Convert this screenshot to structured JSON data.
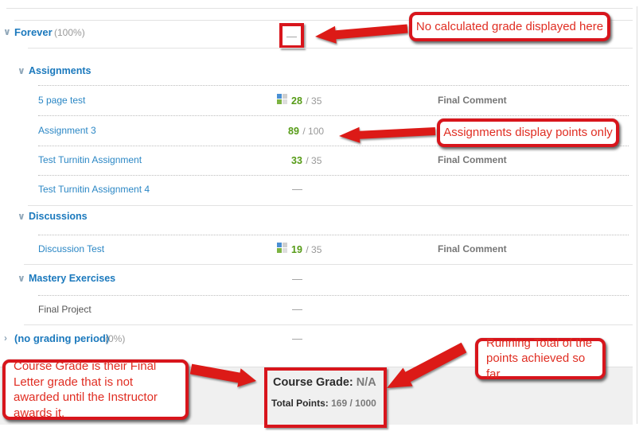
{
  "colors": {
    "accent_blue": "#1b79bd",
    "annotation_red": "#d8151c",
    "grade_green": "#569b17",
    "muted_gray": "#999999",
    "summary_bg": "#f0f0f0"
  },
  "period_row": {
    "chevron": "∨",
    "label": "Forever",
    "weight": "(100%)",
    "dash": "—"
  },
  "sections": {
    "assignments": {
      "chevron": "∨",
      "label": "Assignments"
    },
    "discussions": {
      "chevron": "∨",
      "label": "Discussions"
    },
    "mastery": {
      "chevron": "∨",
      "label": "Mastery Exercises",
      "dash": "—"
    }
  },
  "rows": [
    {
      "title": "5 page test",
      "score": "28",
      "max": "/ 35",
      "comment": "Final Comment"
    },
    {
      "title": "Assignment 3",
      "score": "89",
      "max": "/ 100"
    },
    {
      "title": "Test Turnitin Assignment",
      "score": "33",
      "max": "/ 35",
      "comment": "Final Comment"
    },
    {
      "title": "Test Turnitin Assignment 4",
      "dash": "—"
    },
    {
      "title": "Discussion Test",
      "score": "19",
      "max": "/ 35",
      "comment": "Final Comment"
    },
    {
      "title": "Final Project",
      "dash": "—"
    }
  ],
  "no_grading_period": {
    "chevron": "›",
    "label": "(no grading period)",
    "weight": "(0%)",
    "dash": "—"
  },
  "summary": {
    "course_grade_label": "Course Grade:",
    "course_grade_value": "N/A",
    "total_points_label": "Total Points:",
    "total_points_value": "169 / 1000"
  },
  "annotations": {
    "callout_top": "No calculated grade displayed here",
    "callout_points": "Assignments display points only",
    "callout_course_grade": "Course Grade is their Final Letter grade that is not awarded until the Instructor awards it.",
    "callout_running_total": "Running Total of the points achieved so far"
  }
}
